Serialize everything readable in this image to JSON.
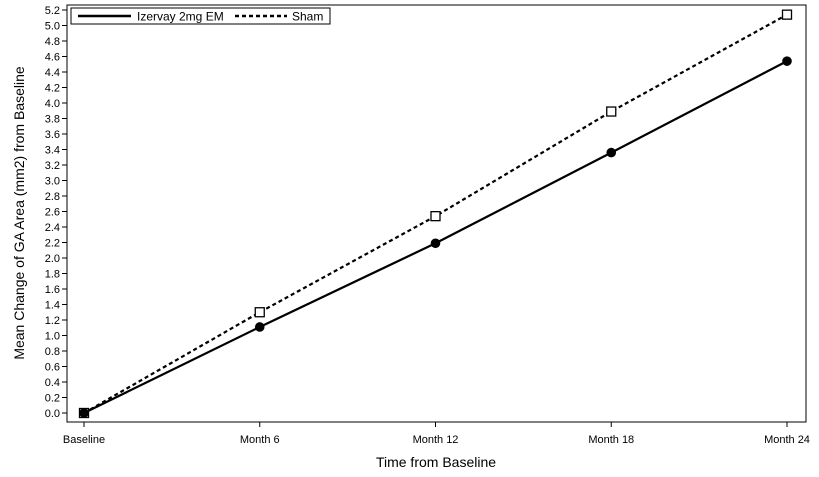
{
  "chart_data": {
    "type": "line",
    "title": "",
    "xlabel": "Time from Baseline",
    "ylabel": "Mean Change of GA Area (mm2) from Baseline",
    "categories": [
      "Baseline",
      "Month 6",
      "Month 12",
      "Month 18",
      "Month 24"
    ],
    "ylim": [
      0,
      5.2
    ],
    "yticks": [
      "0.0",
      "0.2",
      "0.4",
      "0.6",
      "0.8",
      "1.0",
      "1.2",
      "1.4",
      "1.6",
      "1.8",
      "2.0",
      "2.2",
      "2.4",
      "2.6",
      "2.8",
      "3.0",
      "3.2",
      "3.4",
      "3.6",
      "3.8",
      "4.0",
      "4.2",
      "4.4",
      "4.6",
      "4.8",
      "5.0",
      "5.2"
    ],
    "grid": false,
    "legend_position": "top-left",
    "series": [
      {
        "name": "Izervay 2mg EM",
        "values": [
          0.0,
          1.11,
          2.19,
          3.36,
          4.54
        ],
        "color": "#000000",
        "line": "solid",
        "marker": "filled-circle"
      },
      {
        "name": "Sham",
        "values": [
          0.0,
          1.3,
          2.54,
          3.89,
          5.14
        ],
        "color": "#000000",
        "line": "dashed",
        "marker": "open-square"
      }
    ]
  }
}
